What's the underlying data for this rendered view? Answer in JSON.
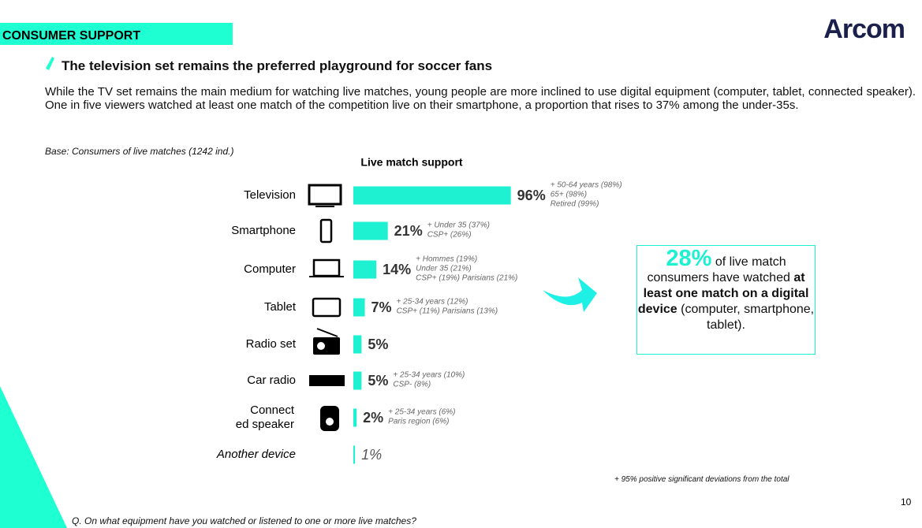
{
  "header": {
    "section": "CONSUMER SUPPORT",
    "logo": "Arcom"
  },
  "subtitle": "The television set remains the preferred playground for soccer fans",
  "paragraph": "While the TV set remains the main medium for watching live matches, young people are more inclined to use digital equipment (computer, tablet, connected speaker). One in five viewers watched at least one match of the competition live on their smartphone, a proportion that rises to 37% among the under-35s.",
  "base_note": "Base: Consumers of live matches (1242 ind.)",
  "chart_data": {
    "type": "bar",
    "orientation": "horizontal",
    "title": "Live match support",
    "categories": [
      "Television",
      "Smartphone",
      "Computer",
      "Tablet",
      "Radio set",
      "Car radio",
      [
        "Connect",
        "ed speaker"
      ],
      "Another device"
    ],
    "values": [
      96,
      21,
      14,
      7,
      5,
      5,
      2,
      1
    ],
    "value_labels": [
      "96%",
      "21%",
      "14%",
      "7%",
      "5%",
      "5%",
      "2%",
      "1%"
    ],
    "color": "#1ef0d2",
    "annotations": [
      [
        "+ 50-64 years (98%)",
        "65+ (98%)",
        "Retired (99%)"
      ],
      [
        "+ Under 35 (37%)",
        "CSP+ (26%)"
      ],
      [
        "+ Hommes (19%)",
        "Under 35 (21%)",
        "CSP+ (19%) Parisians (21%)"
      ],
      [
        "+ 25-34 years (12%)",
        "CSP+ (11%) Parisians (13%)"
      ],
      [],
      [
        "+ 25-34 years (10%)",
        "CSP- (8%)"
      ],
      [
        "+ 25-34 years (6%)",
        "Paris region (6%)"
      ],
      []
    ]
  },
  "callout": {
    "number": "28%",
    "text": "of live match consumers have watched",
    "emphasis": "at least one match on a digital device",
    "tail": "(computer, smartphone, tablet)."
  },
  "footnote": "+ 95% positive significant deviations from the total",
  "page_number": "10",
  "question": "Q. On what equipment have you watched or listened to one or more live matches?"
}
